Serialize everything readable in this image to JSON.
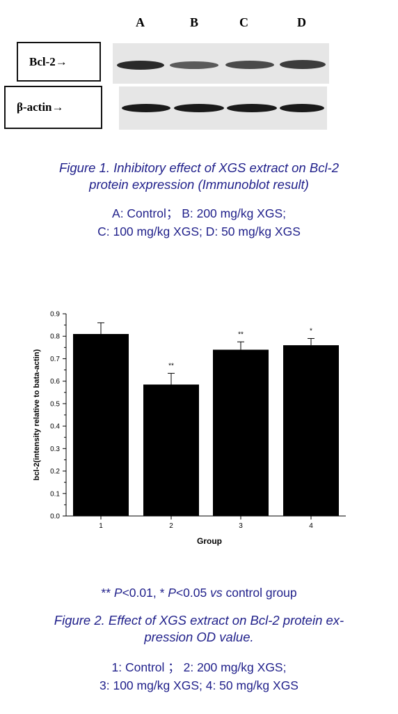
{
  "figure1": {
    "lane_letters": [
      "A",
      "B",
      "C",
      "D"
    ],
    "bcl2_label": "Bcl-2→",
    "actin_label": "β-actin→",
    "caption_line1": "Figure 1.  Inhibitory effect of XGS extract on Bcl-2",
    "caption_line2": "protein expression (Immunoblot result)",
    "legend_line1": "A: Control； B: 200 mg/kg XGS;",
    "legend_line2": "C: 100 mg/kg XGS; D: 50 mg/kg XGS"
  },
  "chart_data": {
    "type": "bar",
    "categories": [
      "1",
      "2",
      "3",
      "4"
    ],
    "values": [
      0.81,
      0.585,
      0.74,
      0.76
    ],
    "errors": [
      0.05,
      0.05,
      0.035,
      0.03
    ],
    "significance": [
      "",
      "**",
      "**",
      "*"
    ],
    "xlabel": "Group",
    "ylabel": "bcl-2(intensity relative to bata-actin)",
    "ylim": [
      0,
      0.9
    ],
    "yticks": [
      "0.0",
      "0.1",
      "0.2",
      "0.3",
      "0.4",
      "0.5",
      "0.6",
      "0.7",
      "0.8",
      "0.9"
    ],
    "bar_color": "#000000",
    "grid": false
  },
  "figure2": {
    "sig_note_prefix": "** ",
    "sig_note_p1": "P",
    "sig_note_mid": "<0.01, * ",
    "sig_note_p2": "P",
    "sig_note_mid2": "<0.05 ",
    "sig_note_vs": "vs",
    "sig_note_suffix": " control group",
    "caption_line1": "Figure 2.  Effect of XGS extract on Bcl-2 protein ex-",
    "caption_line2": "pression OD value.",
    "legend_line1": "1: Control ；  2: 200 mg/kg XGS;",
    "legend_line2": "3: 100 mg/kg XGS; 4: 50 mg/kg XGS"
  },
  "colors": {
    "caption": "#1f1f8a",
    "text": "#000000",
    "blot_bg": "#e6e6e6"
  }
}
